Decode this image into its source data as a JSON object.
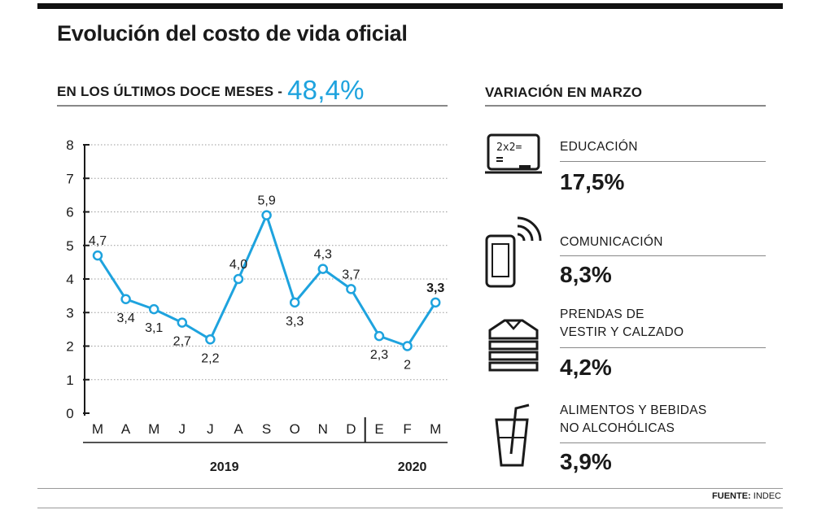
{
  "title": "Evolución del costo de vida oficial",
  "subtitle": {
    "label": "EN LOS ÚLTIMOS DOCE MESES -",
    "value": "48,4%"
  },
  "colors": {
    "accent": "#1ea3de",
    "text": "#1a1a1a"
  },
  "chart_data": {
    "type": "line",
    "categories": [
      "M",
      "A",
      "M",
      "J",
      "J",
      "A",
      "S",
      "O",
      "N",
      "D",
      "E",
      "F",
      "M"
    ],
    "values": [
      4.7,
      3.4,
      3.1,
      2.7,
      2.2,
      4.0,
      5.9,
      3.3,
      4.3,
      3.7,
      2.3,
      2.0,
      3.3
    ],
    "data_labels": [
      "4,7",
      "3,4",
      "3,1",
      "2,7",
      "2,2",
      "4,0",
      "5,9",
      "3,3",
      "4,3",
      "3,7",
      "2,3",
      "2",
      "3,3"
    ],
    "label_pos": [
      "above",
      "below",
      "below",
      "below",
      "below",
      "above",
      "above",
      "below",
      "above",
      "above",
      "below",
      "below",
      "above"
    ],
    "highlight_last": true,
    "ylim": [
      0,
      8
    ],
    "yticks": [
      "0",
      "1",
      "2",
      "3",
      "4",
      "5",
      "6",
      "7",
      "8"
    ],
    "grid": true,
    "year_groups": [
      {
        "label": "2019",
        "from": 0,
        "to": 9
      },
      {
        "label": "2020",
        "from": 10,
        "to": 12
      }
    ]
  },
  "variation": {
    "heading": "VARIACIÓN EN MARZO",
    "items": [
      {
        "label_lines": [
          "EDUCACIÓN"
        ],
        "value": "17,5%",
        "icon": "blackboard-icon"
      },
      {
        "label_lines": [
          "COMUNICACIÓN"
        ],
        "value": "8,3%",
        "icon": "smartphone-icon"
      },
      {
        "label_lines": [
          "PRENDAS DE",
          "VESTIR Y CALZADO"
        ],
        "value": "4,2%",
        "icon": "folded-clothes-icon"
      },
      {
        "label_lines": [
          "ALIMENTOS Y BEBIDAS",
          "NO ALCOHÓLICAS"
        ],
        "value": "3,9%",
        "icon": "drink-glass-icon"
      }
    ]
  },
  "source": {
    "label": "FUENTE:",
    "name": "INDEC"
  }
}
